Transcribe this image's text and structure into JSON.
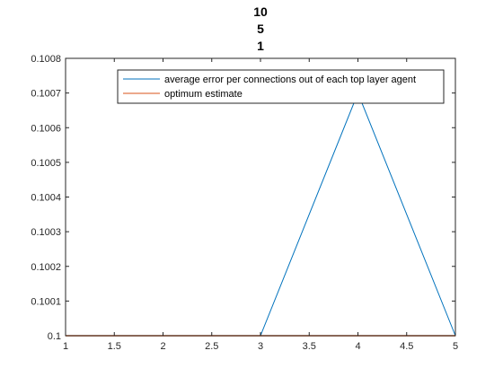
{
  "chart_data": {
    "type": "line",
    "title_lines": [
      "10",
      "5",
      "1"
    ],
    "xlabel": "",
    "ylabel": "",
    "xlim": [
      1,
      5
    ],
    "ylim": [
      0.1,
      0.1008
    ],
    "xticks": [
      1,
      1.5,
      2,
      2.5,
      3,
      3.5,
      4,
      4.5,
      5
    ],
    "xtick_labels": [
      "1",
      "1.5",
      "2",
      "2.5",
      "3",
      "3.5",
      "4",
      "4.5",
      "5"
    ],
    "yticks": [
      0.1,
      0.1001,
      0.1002,
      0.1003,
      0.1004,
      0.1005,
      0.1006,
      0.1007,
      0.1008
    ],
    "ytick_labels": [
      "0.1",
      "0.1001",
      "0.1002",
      "0.1003",
      "0.1004",
      "0.1005",
      "0.1006",
      "0.1007",
      "0.1008"
    ],
    "grid": false,
    "legend_position": "top-right",
    "series": [
      {
        "name": "average error per connections out of each top layer agent",
        "color": "#0072BD",
        "x": [
          1,
          2,
          3,
          4,
          5
        ],
        "y": [
          0.1,
          0.1,
          0.1,
          0.1007,
          0.1
        ]
      },
      {
        "name": "optimum estimate",
        "color": "#D95319",
        "x": [
          1,
          2,
          3,
          4,
          5
        ],
        "y": [
          0.1,
          0.1,
          0.1,
          0.1,
          0.1
        ]
      }
    ]
  }
}
